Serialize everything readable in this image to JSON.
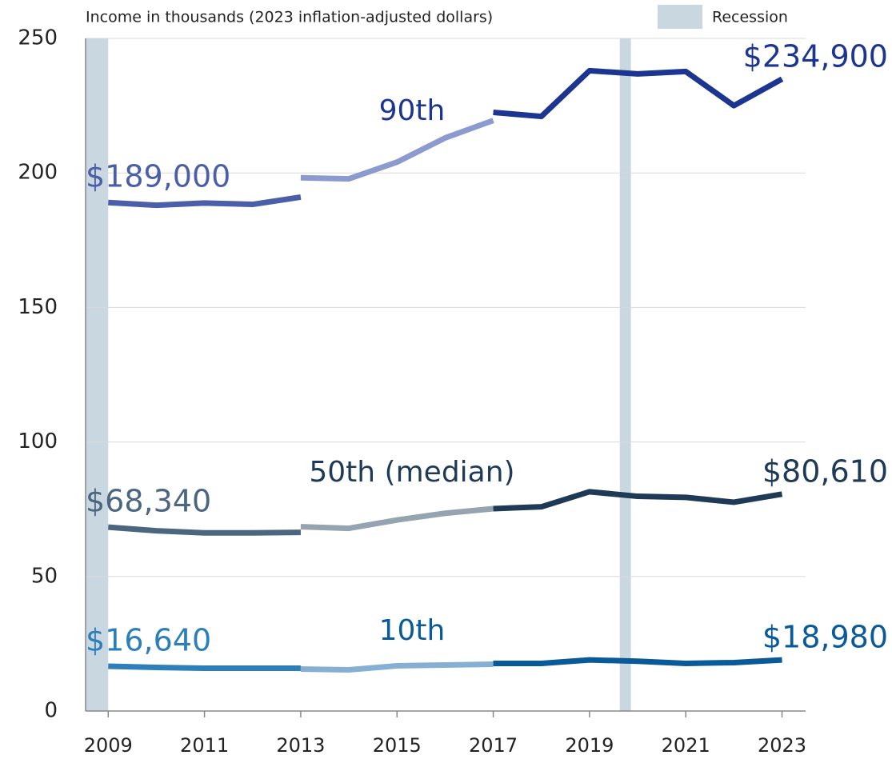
{
  "chart_data": {
    "type": "line",
    "title": "Income in thousands (2023 inflation-adjusted dollars)",
    "legend": {
      "name": "Recession",
      "color": "#c9d7e1"
    },
    "recessions": [
      [
        2008.53,
        2009.0
      ],
      [
        2019.63,
        2019.86
      ]
    ],
    "xlim": [
      2008.53,
      2023.49
    ],
    "xticks": [
      2009,
      2011,
      2013,
      2015,
      2017,
      2019,
      2021,
      2023
    ],
    "ylim": [
      0,
      250
    ],
    "yticks": [
      0,
      50,
      100,
      150,
      200,
      250
    ],
    "grid": true,
    "series": [
      {
        "name": "90th",
        "segments": [
          {
            "color": "#4a5fa8",
            "x": [
              2009,
              2010,
              2011,
              2012,
              2013
            ],
            "values": [
              189,
              188,
              188.8,
              188.3,
              191
            ],
            "value_labels": [
              "$189,000",
              null,
              null,
              null,
              null
            ]
          },
          {
            "color": "#8b9bd0",
            "x": [
              2013,
              2014,
              2015,
              2016,
              2017
            ],
            "values": [
              198.2,
              197.8,
              204,
              213,
              219.5
            ],
            "value_labels": [
              null,
              null,
              null,
              null,
              null
            ]
          },
          {
            "color": "#1b3591",
            "x": [
              2017,
              2018,
              2019,
              2020,
              2021,
              2022,
              2023
            ],
            "values": [
              222.5,
              221,
              238,
              236.8,
              237.7,
              225,
              234.9
            ],
            "value_labels": [
              null,
              null,
              null,
              null,
              null,
              null,
              "$234,900"
            ]
          }
        ]
      },
      {
        "name": "50th (median)",
        "segments": [
          {
            "color": "#4d6680",
            "x": [
              2009,
              2010,
              2011,
              2012,
              2013
            ],
            "values": [
              68.34,
              67,
              66.2,
              66.2,
              66.4
            ],
            "value_labels": [
              "$68,340",
              null,
              null,
              null,
              null
            ]
          },
          {
            "color": "#96a3b0",
            "x": [
              2013,
              2014,
              2015,
              2016,
              2017
            ],
            "values": [
              68.5,
              67.9,
              71,
              73.5,
              75.2
            ],
            "value_labels": [
              null,
              null,
              null,
              null,
              null
            ]
          },
          {
            "color": "#1f3a56",
            "x": [
              2017,
              2018,
              2019,
              2020,
              2021,
              2022,
              2023
            ],
            "values": [
              75.2,
              75.9,
              81.5,
              79.8,
              79.4,
              77.6,
              80.61
            ],
            "value_labels": [
              null,
              null,
              null,
              null,
              null,
              null,
              "$80,610"
            ]
          }
        ]
      },
      {
        "name": "10th",
        "segments": [
          {
            "color": "#2e7fb8",
            "x": [
              2009,
              2010,
              2011,
              2012,
              2013
            ],
            "values": [
              16.64,
              16.2,
              15.9,
              15.9,
              15.9
            ],
            "value_labels": [
              "$16,640",
              null,
              null,
              null,
              null
            ]
          },
          {
            "color": "#85b0d3",
            "x": [
              2013,
              2014,
              2015,
              2016,
              2017
            ],
            "values": [
              15.6,
              15.3,
              16.8,
              17.1,
              17.4
            ],
            "value_labels": [
              null,
              null,
              null,
              null,
              null
            ]
          },
          {
            "color": "#0a5a99",
            "x": [
              2017,
              2018,
              2019,
              2020,
              2021,
              2022,
              2023
            ],
            "values": [
              17.7,
              17.7,
              19,
              18.5,
              17.7,
              18,
              18.98
            ],
            "value_labels": [
              null,
              null,
              null,
              null,
              null,
              null,
              "$18,980"
            ]
          }
        ]
      }
    ]
  }
}
